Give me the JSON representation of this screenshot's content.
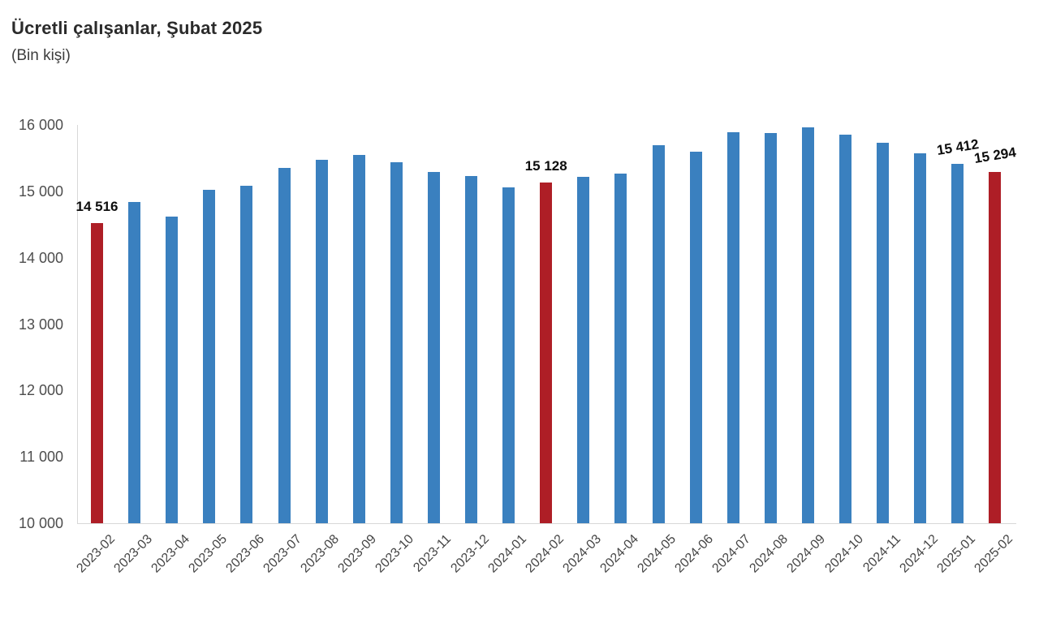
{
  "header": {
    "title": "Ücretli çalışanlar, Şubat 2025",
    "subtitle": "(Bin kişi)"
  },
  "chart_data": {
    "type": "bar",
    "title": "Ücretli çalışanlar, Şubat 2025",
    "subtitle": "(Bin kişi)",
    "xlabel": "",
    "ylabel": "",
    "ylim": [
      10000,
      16000
    ],
    "ytick_interval": 1000,
    "ytick_labels": [
      "16 000",
      "15 000",
      "14 000",
      "13 000",
      "12 000",
      "11 000",
      "10 000"
    ],
    "grid": false,
    "legend": false,
    "categories": [
      "2023-02",
      "2023-03",
      "2023-04",
      "2023-05",
      "2023-06",
      "2023-07",
      "2023-08",
      "2023-09",
      "2023-10",
      "2023-11",
      "2023-12",
      "2024-01",
      "2024-02",
      "2024-03",
      "2024-04",
      "2024-05",
      "2024-06",
      "2024-07",
      "2024-08",
      "2024-09",
      "2024-10",
      "2024-11",
      "2024-12",
      "2025-01",
      "2025-02"
    ],
    "values": [
      14516,
      14835,
      14620,
      15020,
      15085,
      15350,
      15470,
      15550,
      15440,
      15290,
      15230,
      15060,
      15128,
      15220,
      15265,
      15690,
      15600,
      15885,
      15880,
      15960,
      15850,
      15730,
      15570,
      15412,
      15294
    ],
    "labeled_points": [
      {
        "index": 0,
        "label": "14 516"
      },
      {
        "index": 12,
        "label": "15 128"
      },
      {
        "index": 23,
        "label": "15 412"
      },
      {
        "index": 24,
        "label": "15 294"
      }
    ],
    "highlight_indices": [
      0,
      12,
      24
    ],
    "colors": {
      "bar_default": "#3a80bf",
      "bar_highlight": "#ae1e26",
      "axis_line": "#d8d8d8",
      "tick_text": "#4d4d4d",
      "label_text": "#0d0d0d"
    }
  }
}
